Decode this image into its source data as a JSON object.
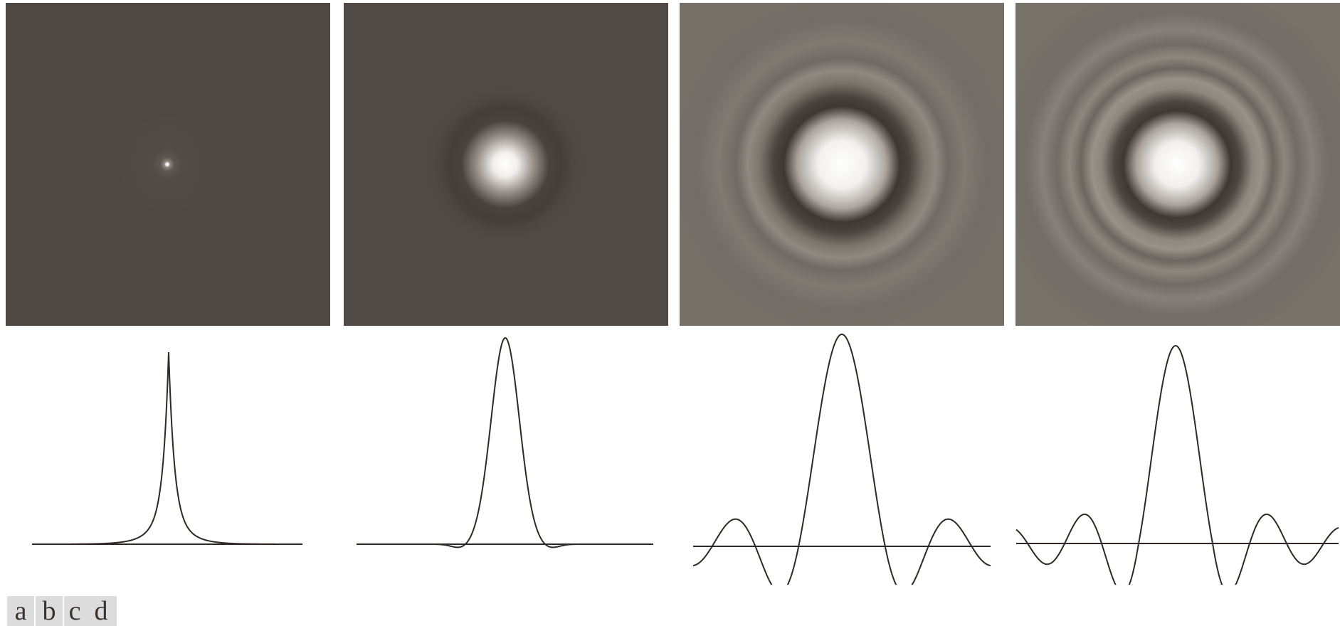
{
  "panels": [
    {
      "label": "a",
      "bg": "#4f4741"
    },
    {
      "label": "b",
      "bg": "#514943"
    },
    {
      "label": "c",
      "bg": "#757068"
    },
    {
      "label": "d",
      "bg": "#767169"
    }
  ],
  "colors": {
    "curve": "#2e2924",
    "axis": "#2e2924",
    "label_bg": "#dcdcdc"
  }
}
